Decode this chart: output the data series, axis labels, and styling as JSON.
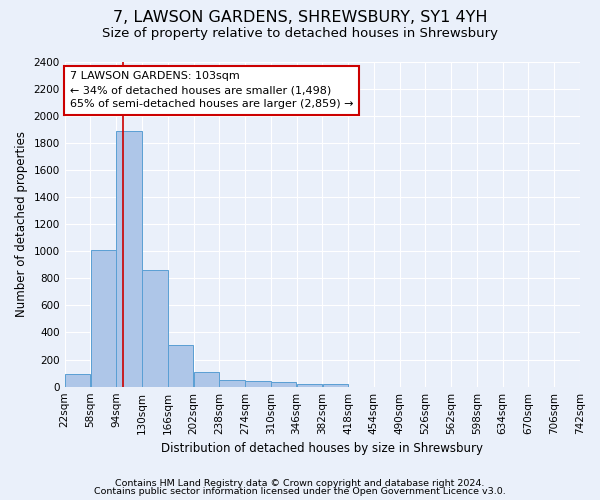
{
  "title": "7, LAWSON GARDENS, SHREWSBURY, SY1 4YH",
  "subtitle": "Size of property relative to detached houses in Shrewsbury",
  "xlabel": "Distribution of detached houses by size in Shrewsbury",
  "ylabel": "Number of detached properties",
  "footnote1": "Contains HM Land Registry data © Crown copyright and database right 2024.",
  "footnote2": "Contains public sector information licensed under the Open Government Licence v3.0.",
  "bin_edges": [
    22,
    58,
    94,
    130,
    166,
    202,
    238,
    274,
    310,
    346,
    382,
    418,
    454,
    490,
    526,
    562,
    598,
    634,
    670,
    706,
    742
  ],
  "bar_heights": [
    90,
    1010,
    1890,
    860,
    310,
    110,
    50,
    45,
    35,
    20,
    20,
    0,
    0,
    0,
    0,
    0,
    0,
    0,
    0,
    0
  ],
  "bar_color": "#aec6e8",
  "bar_edgecolor": "#5a9fd4",
  "property_size": 103,
  "property_line_color": "#cc0000",
  "annotation_line1": "7 LAWSON GARDENS: 103sqm",
  "annotation_line2": "← 34% of detached houses are smaller (1,498)",
  "annotation_line3": "65% of semi-detached houses are larger (2,859) →",
  "annotation_box_edgecolor": "#cc0000",
  "annotation_box_facecolor": "#ffffff",
  "ylim": [
    0,
    2400
  ],
  "yticks": [
    0,
    200,
    400,
    600,
    800,
    1000,
    1200,
    1400,
    1600,
    1800,
    2000,
    2200,
    2400
  ],
  "background_color": "#eaf0fa",
  "grid_color": "#ffffff",
  "title_fontsize": 11.5,
  "subtitle_fontsize": 9.5,
  "label_fontsize": 8.5,
  "tick_fontsize": 7.5,
  "annotation_fontsize": 8,
  "footnote_fontsize": 6.8
}
